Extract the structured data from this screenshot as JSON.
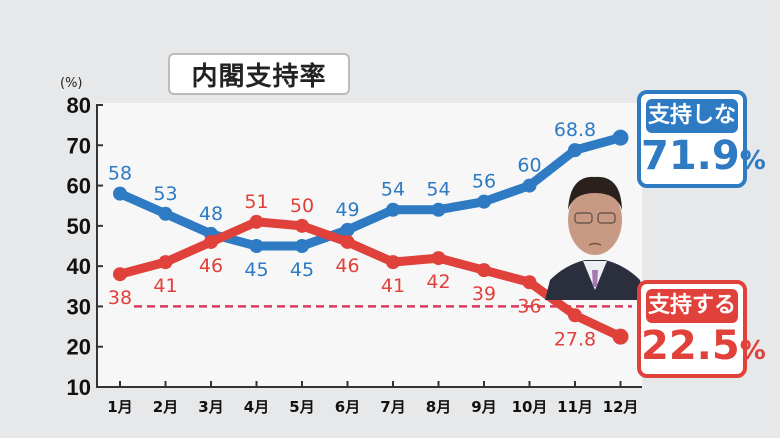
{
  "title": "内閣支持率",
  "y_unit": "(%)",
  "badges": {
    "disapprove": {
      "label": "支持しない",
      "value": "71.9",
      "unit": "%",
      "color": "#2e7ac3"
    },
    "approve": {
      "label": "支持する",
      "value": "22.5",
      "unit": "%",
      "color": "#e0413a"
    }
  },
  "photo": {
    "alt": "portrait-of-prime-minister"
  },
  "chart_data": {
    "type": "line",
    "title": "内閣支持率",
    "xlabel": "",
    "ylabel": "(%)",
    "ylim": [
      10,
      80
    ],
    "yticks": [
      80,
      70,
      60,
      50,
      40,
      30,
      20,
      10
    ],
    "categories": [
      "1月",
      "2月",
      "3月",
      "4月",
      "5月",
      "6月",
      "7月",
      "8月",
      "9月",
      "10月",
      "11月",
      "12月"
    ],
    "series": [
      {
        "name": "支持しない",
        "color": "#2e7ac3",
        "values": [
          58,
          53,
          48,
          45,
          45,
          49,
          54,
          54,
          56,
          60,
          68.8,
          71.9
        ],
        "labels": [
          "58",
          "53",
          "48",
          "45",
          "45",
          "49",
          "54",
          "54",
          "56",
          "60",
          "68.8",
          ""
        ]
      },
      {
        "name": "支持する",
        "color": "#e0413a",
        "values": [
          38,
          41,
          46,
          51,
          50,
          46,
          41,
          42,
          39,
          36,
          27.8,
          22.5
        ],
        "labels": [
          "38",
          "41",
          "46",
          "51",
          "50",
          "46",
          "41",
          "42",
          "39",
          "36",
          "27.8",
          ""
        ]
      }
    ],
    "reference_line": {
      "value": 30,
      "style": "dashed",
      "color": "#d93a5e"
    },
    "grid": false,
    "legend": "callout badges at right"
  }
}
